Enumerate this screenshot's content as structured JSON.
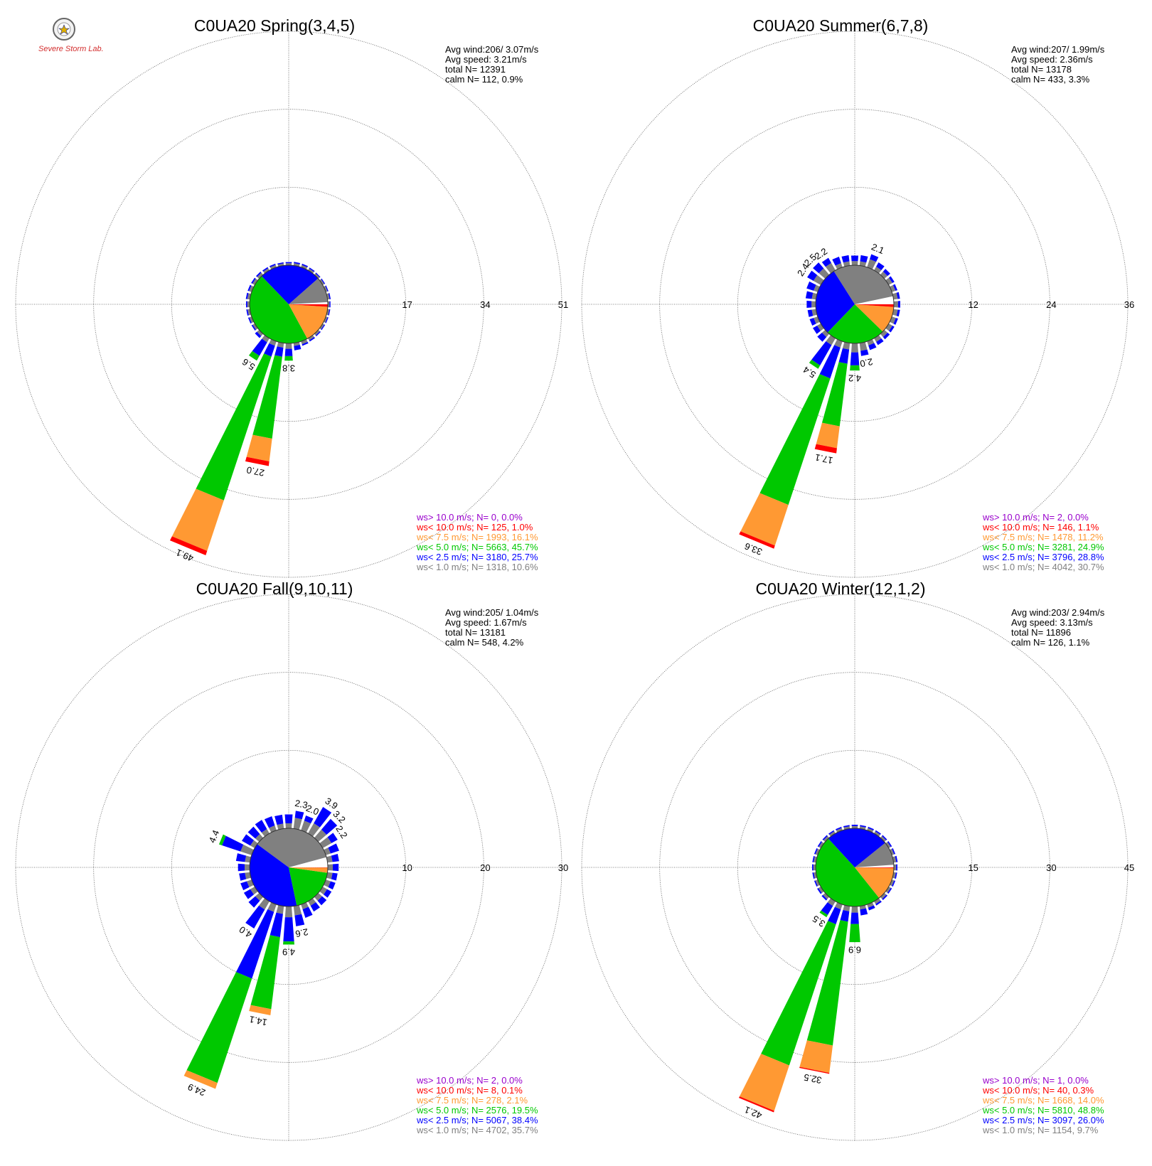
{
  "logo": {
    "text": "Severe Storm Lab."
  },
  "colors": {
    "calm": "#ffffff",
    "lt1": "#808080",
    "lt2_5": "#0000ff",
    "lt5": "#00c800",
    "lt7_5": "#ff9933",
    "lt10": "#ff0000",
    "gt10": "#9900cc"
  },
  "chart_data": [
    {
      "type": "windrose",
      "title": "C0UA20 Spring(3,4,5)",
      "ring_max": 51,
      "ring_labels": [
        "17",
        "34",
        "51"
      ],
      "stats": [
        "Avg wind:206/ 3.07m/s",
        "Avg speed: 3.21m/s",
        "total N=      12391",
        "calm N=    112,   0.9%"
      ],
      "legend": [
        {
          "key": "gt10",
          "text": "ws> 10.0 m/s; N=     0,  0.0%"
        },
        {
          "key": "lt10",
          "text": "ws< 10.0 m/s; N=   125,  1.0%"
        },
        {
          "key": "lt7_5",
          "text": "ws<  7.5 m/s; N=  1993, 16.1%"
        },
        {
          "key": "lt5",
          "text": "ws<  5.0 m/s; N=  5663, 45.7%"
        },
        {
          "key": "lt2_5",
          "text": "ws<  2.5 m/s; N=  3180, 25.7%"
        },
        {
          "key": "lt1",
          "text": "ws<  1.0 m/s; N=  1318, 10.6%"
        }
      ],
      "pie_percent": {
        "calm": 0.9,
        "lt1": 10.6,
        "lt2_5": 25.7,
        "lt5": 45.7,
        "lt7_5": 16.1,
        "lt10": 1.0,
        "gt10": 0.0
      },
      "bars": [
        {
          "dir": 202.5,
          "total": 49.1,
          "parts": {
            "lt1": 1.0,
            "lt2_5": 2.5,
            "lt5": 33.0,
            "lt7_5": 11.6,
            "lt10": 1.0
          },
          "label": "49.1"
        },
        {
          "dir": 191.25,
          "total": 27.0,
          "parts": {
            "lt1": 1.0,
            "lt2_5": 2.0,
            "lt5": 18.0,
            "lt7_5": 5.0,
            "lt10": 1.0
          },
          "label": "27.0"
        },
        {
          "dir": 213.75,
          "total": 5.6,
          "parts": {
            "lt1": 1.0,
            "lt2_5": 3.4,
            "lt5": 1.2
          },
          "label": "5.6"
        },
        {
          "dir": 180.0,
          "total": 3.8,
          "parts": {
            "lt1": 1.2,
            "lt2_5": 1.6,
            "lt5": 1.0
          },
          "label": "3.8"
        }
      ],
      "small_bars": [
        {
          "dir": 0.0,
          "total": 0.7
        },
        {
          "dir": 11.25,
          "total": 0.8
        },
        {
          "dir": 22.5,
          "total": 0.8
        },
        {
          "dir": 33.75,
          "total": 0.7
        },
        {
          "dir": 45.0,
          "total": 0.6
        },
        {
          "dir": 56.25,
          "total": 0.6
        },
        {
          "dir": 67.5,
          "total": 0.6
        },
        {
          "dir": 78.75,
          "total": 0.7
        },
        {
          "dir": 90.0,
          "total": 0.6
        },
        {
          "dir": 101.25,
          "total": 0.6
        },
        {
          "dir": 112.5,
          "total": 0.6
        },
        {
          "dir": 123.75,
          "total": 0.6
        },
        {
          "dir": 135.0,
          "total": 0.7
        },
        {
          "dir": 146.25,
          "total": 0.8
        },
        {
          "dir": 157.5,
          "total": 1.0
        },
        {
          "dir": 168.75,
          "total": 1.6
        },
        {
          "dir": 225.0,
          "total": 1.2
        },
        {
          "dir": 236.25,
          "total": 0.8
        },
        {
          "dir": 247.5,
          "total": 0.8
        },
        {
          "dir": 258.75,
          "total": 0.8
        },
        {
          "dir": 270.0,
          "total": 0.8
        },
        {
          "dir": 281.25,
          "total": 0.9
        },
        {
          "dir": 292.5,
          "total": 0.9
        },
        {
          "dir": 303.75,
          "total": 0.9
        },
        {
          "dir": 315.0,
          "total": 0.9
        },
        {
          "dir": 326.25,
          "total": 0.8
        },
        {
          "dir": 337.5,
          "total": 0.8
        },
        {
          "dir": 348.75,
          "total": 0.7
        }
      ]
    },
    {
      "type": "windrose",
      "title": "C0UA20 Summer(6,7,8)",
      "ring_max": 36,
      "ring_labels": [
        "12",
        "24",
        "36"
      ],
      "stats": [
        "Avg wind:207/ 1.99m/s",
        "Avg speed: 2.36m/s",
        "total N=      13178",
        "calm N=    433,   3.3%"
      ],
      "legend": [
        {
          "key": "gt10",
          "text": "ws> 10.0 m/s; N=     2,  0.0%"
        },
        {
          "key": "lt10",
          "text": "ws< 10.0 m/s; N=   146,  1.1%"
        },
        {
          "key": "lt7_5",
          "text": "ws<  7.5 m/s; N=  1478, 11.2%"
        },
        {
          "key": "lt5",
          "text": "ws<  5.0 m/s; N=  3281, 24.9%"
        },
        {
          "key": "lt2_5",
          "text": "ws<  2.5 m/s; N=  3796, 28.8%"
        },
        {
          "key": "lt1",
          "text": "ws<  1.0 m/s; N=  4042, 30.7%"
        }
      ],
      "pie_percent": {
        "calm": 3.3,
        "lt1": 30.7,
        "lt2_5": 28.8,
        "lt5": 24.9,
        "lt7_5": 11.2,
        "lt10": 1.1,
        "gt10": 0.0
      },
      "bars": [
        {
          "dir": 202.5,
          "total": 33.6,
          "parts": {
            "lt1": 1.0,
            "lt2_5": 5.0,
            "lt5": 20.5,
            "lt7_5": 6.6,
            "lt10": 0.5
          },
          "label": "33.6"
        },
        {
          "dir": 191.25,
          "total": 17.1,
          "parts": {
            "lt1": 1.0,
            "lt2_5": 2.2,
            "lt5": 9.7,
            "lt7_5": 3.4,
            "lt10": 0.8
          },
          "label": "17.1"
        },
        {
          "dir": 213.75,
          "total": 5.4,
          "parts": {
            "lt1": 1.2,
            "lt2_5": 3.6,
            "lt5": 0.6
          },
          "label": "5.4"
        },
        {
          "dir": 180.0,
          "total": 4.2,
          "parts": {
            "lt1": 1.4,
            "lt2_5": 2.0,
            "lt5": 0.8
          },
          "label": "4.2"
        },
        {
          "dir": 168.75,
          "total": 2.0,
          "parts": {
            "lt1": 1.2,
            "lt2_5": 0.8
          },
          "label": "2.0"
        },
        {
          "dir": 22.5,
          "total": 2.1,
          "parts": {
            "lt1": 1.3,
            "lt2_5": 0.8
          },
          "label": "2.1"
        },
        {
          "dir": 326.25,
          "total": 2.2,
          "parts": {
            "lt1": 1.3,
            "lt2_5": 0.9
          },
          "label": "2.2"
        },
        {
          "dir": 315.0,
          "total": 2.5,
          "parts": {
            "lt1": 1.3,
            "lt2_5": 1.2
          },
          "label": "2.5"
        },
        {
          "dir": 303.75,
          "total": 2.4,
          "parts": {
            "lt1": 1.3,
            "lt2_5": 1.1
          },
          "label": "2.4"
        }
      ],
      "small_bars": [
        {
          "dir": 0.0,
          "total": 1.5
        },
        {
          "dir": 11.25,
          "total": 1.6
        },
        {
          "dir": 33.75,
          "total": 1.4
        },
        {
          "dir": 45.0,
          "total": 1.2
        },
        {
          "dir": 56.25,
          "total": 1.0
        },
        {
          "dir": 67.5,
          "total": 0.9
        },
        {
          "dir": 78.75,
          "total": 1.0
        },
        {
          "dir": 90.0,
          "total": 1.0
        },
        {
          "dir": 101.25,
          "total": 1.0
        },
        {
          "dir": 112.5,
          "total": 1.0
        },
        {
          "dir": 123.75,
          "total": 1.0
        },
        {
          "dir": 135.0,
          "total": 1.1
        },
        {
          "dir": 146.25,
          "total": 1.2
        },
        {
          "dir": 157.5,
          "total": 1.4
        },
        {
          "dir": 225.0,
          "total": 1.6
        },
        {
          "dir": 236.25,
          "total": 1.4
        },
        {
          "dir": 247.5,
          "total": 1.3
        },
        {
          "dir": 258.75,
          "total": 1.3
        },
        {
          "dir": 270.0,
          "total": 1.4
        },
        {
          "dir": 281.25,
          "total": 1.6
        },
        {
          "dir": 292.5,
          "total": 1.8
        },
        {
          "dir": 337.5,
          "total": 1.7
        },
        {
          "dir": 348.75,
          "total": 1.6
        }
      ]
    },
    {
      "type": "windrose",
      "title": "C0UA20 Fall(9,10,11)",
      "ring_max": 30,
      "ring_labels": [
        "10",
        "20",
        "30"
      ],
      "stats": [
        "Avg wind:205/ 1.04m/s",
        "Avg speed: 1.67m/s",
        "total N=      13181",
        "calm N=    548,   4.2%"
      ],
      "legend": [
        {
          "key": "gt10",
          "text": "ws> 10.0 m/s; N=     2,  0.0%"
        },
        {
          "key": "lt10",
          "text": "ws< 10.0 m/s; N=     8,  0.1%"
        },
        {
          "key": "lt7_5",
          "text": "ws<  7.5 m/s; N=   278,  2.1%"
        },
        {
          "key": "lt5",
          "text": "ws<  5.0 m/s; N=  2576, 19.5%"
        },
        {
          "key": "lt2_5",
          "text": "ws<  2.5 m/s; N=  5067, 38.4%"
        },
        {
          "key": "lt1",
          "text": "ws<  1.0 m/s; N=  4702, 35.7%"
        }
      ],
      "pie_percent": {
        "calm": 4.2,
        "lt1": 35.7,
        "lt2_5": 38.4,
        "lt5": 19.5,
        "lt7_5": 2.1,
        "lt10": 0.1,
        "gt10": 0.0
      },
      "bars": [
        {
          "dir": 202.5,
          "total": 24.9,
          "parts": {
            "lt1": 1.0,
            "lt2_5": 9.0,
            "lt5": 14.1,
            "lt7_5": 0.8
          },
          "label": "24.9"
        },
        {
          "dir": 191.25,
          "total": 14.1,
          "parts": {
            "lt1": 1.0,
            "lt2_5": 3.0,
            "lt5": 9.3,
            "lt7_5": 0.8
          },
          "label": "14.1"
        },
        {
          "dir": 213.75,
          "total": 4.0,
          "parts": {
            "lt1": 1.2,
            "lt2_5": 2.8
          },
          "label": "4.0"
        },
        {
          "dir": 180.0,
          "total": 4.9,
          "parts": {
            "lt1": 1.4,
            "lt2_5": 3.1,
            "lt5": 0.4
          },
          "label": "4.9"
        },
        {
          "dir": 168.75,
          "total": 2.6,
          "parts": {
            "lt1": 1.2,
            "lt2_5": 1.4
          },
          "label": "2.6"
        },
        {
          "dir": 292.5,
          "total": 4.4,
          "parts": {
            "lt1": 1.5,
            "lt2_5": 2.5,
            "lt5": 0.4
          },
          "label": "4.4"
        },
        {
          "dir": 11.25,
          "total": 2.3,
          "parts": {
            "lt1": 1.4,
            "lt2_5": 0.9
          },
          "label": "2.3"
        },
        {
          "dir": 22.5,
          "total": 2.0,
          "parts": {
            "lt1": 1.3,
            "lt2_5": 0.7
          },
          "label": "2.0"
        },
        {
          "dir": 33.75,
          "total": 3.9,
          "parts": {
            "lt1": 1.5,
            "lt2_5": 2.4
          },
          "label": "3.9"
        },
        {
          "dir": 45.0,
          "total": 3.2,
          "parts": {
            "lt1": 1.4,
            "lt2_5": 1.8
          },
          "label": "3.2"
        },
        {
          "dir": 56.25,
          "total": 2.2,
          "parts": {
            "lt1": 1.3,
            "lt2_5": 0.9
          },
          "label": "2.2"
        }
      ],
      "small_bars": [
        {
          "dir": 0.0,
          "total": 1.8
        },
        {
          "dir": 67.5,
          "total": 1.8
        },
        {
          "dir": 78.75,
          "total": 1.5
        },
        {
          "dir": 90.0,
          "total": 1.4
        },
        {
          "dir": 101.25,
          "total": 1.3
        },
        {
          "dir": 112.5,
          "total": 1.3
        },
        {
          "dir": 123.75,
          "total": 1.3
        },
        {
          "dir": 135.0,
          "total": 1.4
        },
        {
          "dir": 146.25,
          "total": 1.5
        },
        {
          "dir": 157.5,
          "total": 1.8
        },
        {
          "dir": 225.0,
          "total": 1.8
        },
        {
          "dir": 236.25,
          "total": 1.6
        },
        {
          "dir": 247.5,
          "total": 1.5
        },
        {
          "dir": 258.75,
          "total": 1.4
        },
        {
          "dir": 270.0,
          "total": 1.5
        },
        {
          "dir": 281.25,
          "total": 1.8
        },
        {
          "dir": 303.75,
          "total": 1.9
        },
        {
          "dir": 315.0,
          "total": 1.9
        },
        {
          "dir": 326.25,
          "total": 2.0
        },
        {
          "dir": 337.5,
          "total": 1.9
        },
        {
          "dir": 348.75,
          "total": 1.8
        }
      ]
    },
    {
      "type": "windrose",
      "title": "C0UA20 Winter(12,1,2)",
      "ring_max": 45,
      "ring_labels": [
        "15",
        "30",
        "45"
      ],
      "stats": [
        "Avg wind:203/ 2.94m/s",
        "Avg speed: 3.13m/s",
        "total N=      11896",
        "calm N=    126,   1.1%"
      ],
      "legend": [
        {
          "key": "gt10",
          "text": "ws> 10.0 m/s; N=     1,  0.0%"
        },
        {
          "key": "lt10",
          "text": "ws< 10.0 m/s; N=    40,  0.3%"
        },
        {
          "key": "lt7_5",
          "text": "ws<  7.5 m/s; N=  1668, 14.0%"
        },
        {
          "key": "lt5",
          "text": "ws<  5.0 m/s; N=  5810, 48.8%"
        },
        {
          "key": "lt2_5",
          "text": "ws<  2.5 m/s; N=  3097, 26.0%"
        },
        {
          "key": "lt1",
          "text": "ws<  1.0 m/s; N=  1154,  9.7%"
        }
      ],
      "pie_percent": {
        "calm": 1.1,
        "lt1": 9.7,
        "lt2_5": 26.0,
        "lt5": 48.8,
        "lt7_5": 14.0,
        "lt10": 0.3,
        "gt10": 0.0
      },
      "bars": [
        {
          "dir": 202.5,
          "total": 42.1,
          "parts": {
            "lt1": 1.0,
            "lt2_5": 3.0,
            "lt5": 28.6,
            "lt7_5": 9.2,
            "lt10": 0.3
          },
          "label": "42.1"
        },
        {
          "dir": 191.25,
          "total": 32.5,
          "parts": {
            "lt1": 1.0,
            "lt2_5": 2.0,
            "lt5": 24.0,
            "lt7_5": 5.3,
            "lt10": 0.2
          },
          "label": "32.5"
        },
        {
          "dir": 213.75,
          "total": 3.5,
          "parts": {
            "lt1": 1.0,
            "lt2_5": 2.0,
            "lt5": 0.5
          },
          "label": "3.5"
        },
        {
          "dir": 180.0,
          "total": 6.9,
          "parts": {
            "lt1": 1.2,
            "lt2_5": 2.2,
            "lt5": 3.5
          },
          "label": "6.9"
        }
      ],
      "small_bars": [
        {
          "dir": 0.0,
          "total": 0.7
        },
        {
          "dir": 11.25,
          "total": 0.7
        },
        {
          "dir": 22.5,
          "total": 0.7
        },
        {
          "dir": 33.75,
          "total": 0.7
        },
        {
          "dir": 45.0,
          "total": 0.7
        },
        {
          "dir": 56.25,
          "total": 0.7
        },
        {
          "dir": 67.5,
          "total": 0.7
        },
        {
          "dir": 78.75,
          "total": 0.8
        },
        {
          "dir": 90.0,
          "total": 0.7
        },
        {
          "dir": 101.25,
          "total": 0.7
        },
        {
          "dir": 112.5,
          "total": 0.7
        },
        {
          "dir": 123.75,
          "total": 0.7
        },
        {
          "dir": 135.0,
          "total": 0.8
        },
        {
          "dir": 146.25,
          "total": 0.9
        },
        {
          "dir": 157.5,
          "total": 1.2
        },
        {
          "dir": 168.75,
          "total": 1.8
        },
        {
          "dir": 225.0,
          "total": 0.9
        },
        {
          "dir": 236.25,
          "total": 0.8
        },
        {
          "dir": 247.5,
          "total": 0.7
        },
        {
          "dir": 258.75,
          "total": 0.7
        },
        {
          "dir": 270.0,
          "total": 0.7
        },
        {
          "dir": 281.25,
          "total": 0.7
        },
        {
          "dir": 292.5,
          "total": 0.7
        },
        {
          "dir": 303.75,
          "total": 0.7
        },
        {
          "dir": 315.0,
          "total": 0.7
        },
        {
          "dir": 326.25,
          "total": 0.7
        },
        {
          "dir": 337.5,
          "total": 0.7
        },
        {
          "dir": 348.75,
          "total": 0.7
        }
      ]
    }
  ]
}
